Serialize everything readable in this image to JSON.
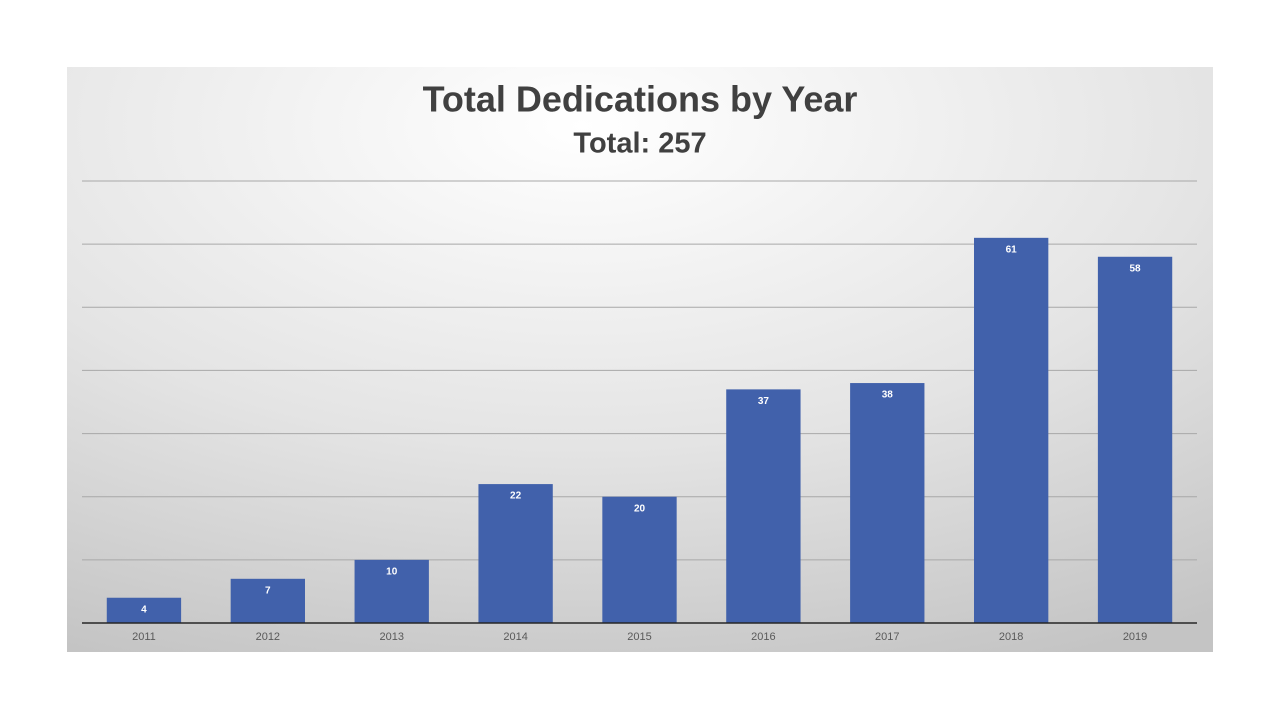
{
  "chart_data": {
    "type": "bar",
    "title": "Total Dedications by Year",
    "subtitle": "Total: 257",
    "categories": [
      "2011",
      "2012",
      "2013",
      "2014",
      "2015",
      "2016",
      "2017",
      "2018",
      "2019"
    ],
    "values": [
      4,
      7,
      10,
      22,
      20,
      37,
      38,
      61,
      58
    ],
    "color": "#4161ab",
    "ylim": [
      0,
      70
    ],
    "yticks": [
      10,
      20,
      30,
      40,
      50,
      60,
      70
    ],
    "grid": true
  }
}
